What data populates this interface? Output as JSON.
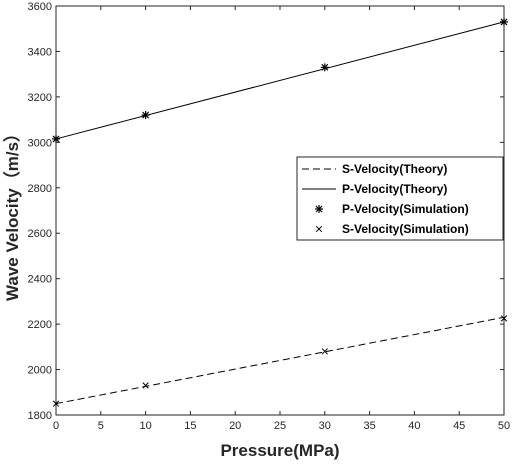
{
  "chart_data": {
    "type": "line",
    "xlabel": "Pressure(MPa)",
    "ylabel": "Wave Velocity（m/s）",
    "xlim": [
      0,
      50
    ],
    "ylim": [
      1800,
      3600
    ],
    "xticks": [
      "0",
      "5",
      "10",
      "15",
      "20",
      "25",
      "30",
      "35",
      "40",
      "45",
      "50"
    ],
    "yticks": [
      "1800",
      "2000",
      "2200",
      "2400",
      "2600",
      "2800",
      "3000",
      "3200",
      "3400",
      "3600"
    ],
    "grid": false,
    "legend_position": "center-right",
    "series": [
      {
        "name": "S-Velocity(Theory)",
        "style": "dashed-line",
        "color": "#000000",
        "x": [
          0,
          50
        ],
        "y": [
          1850,
          2230
        ]
      },
      {
        "name": "P-Velocity(Theory)",
        "style": "solid-line",
        "color": "#000000",
        "x": [
          0,
          50
        ],
        "y": [
          3015,
          3530
        ]
      },
      {
        "name": "P-Velocity(Simulation)",
        "style": "asterisk-marker",
        "color": "#000000",
        "x": [
          0,
          10,
          30,
          50
        ],
        "y": [
          3015,
          3120,
          3330,
          3530
        ]
      },
      {
        "name": "S-Velocity(Simulation)",
        "style": "x-marker",
        "color": "#000000",
        "x": [
          0,
          10,
          30,
          50
        ],
        "y": [
          1850,
          1930,
          2080,
          2225
        ]
      }
    ]
  }
}
